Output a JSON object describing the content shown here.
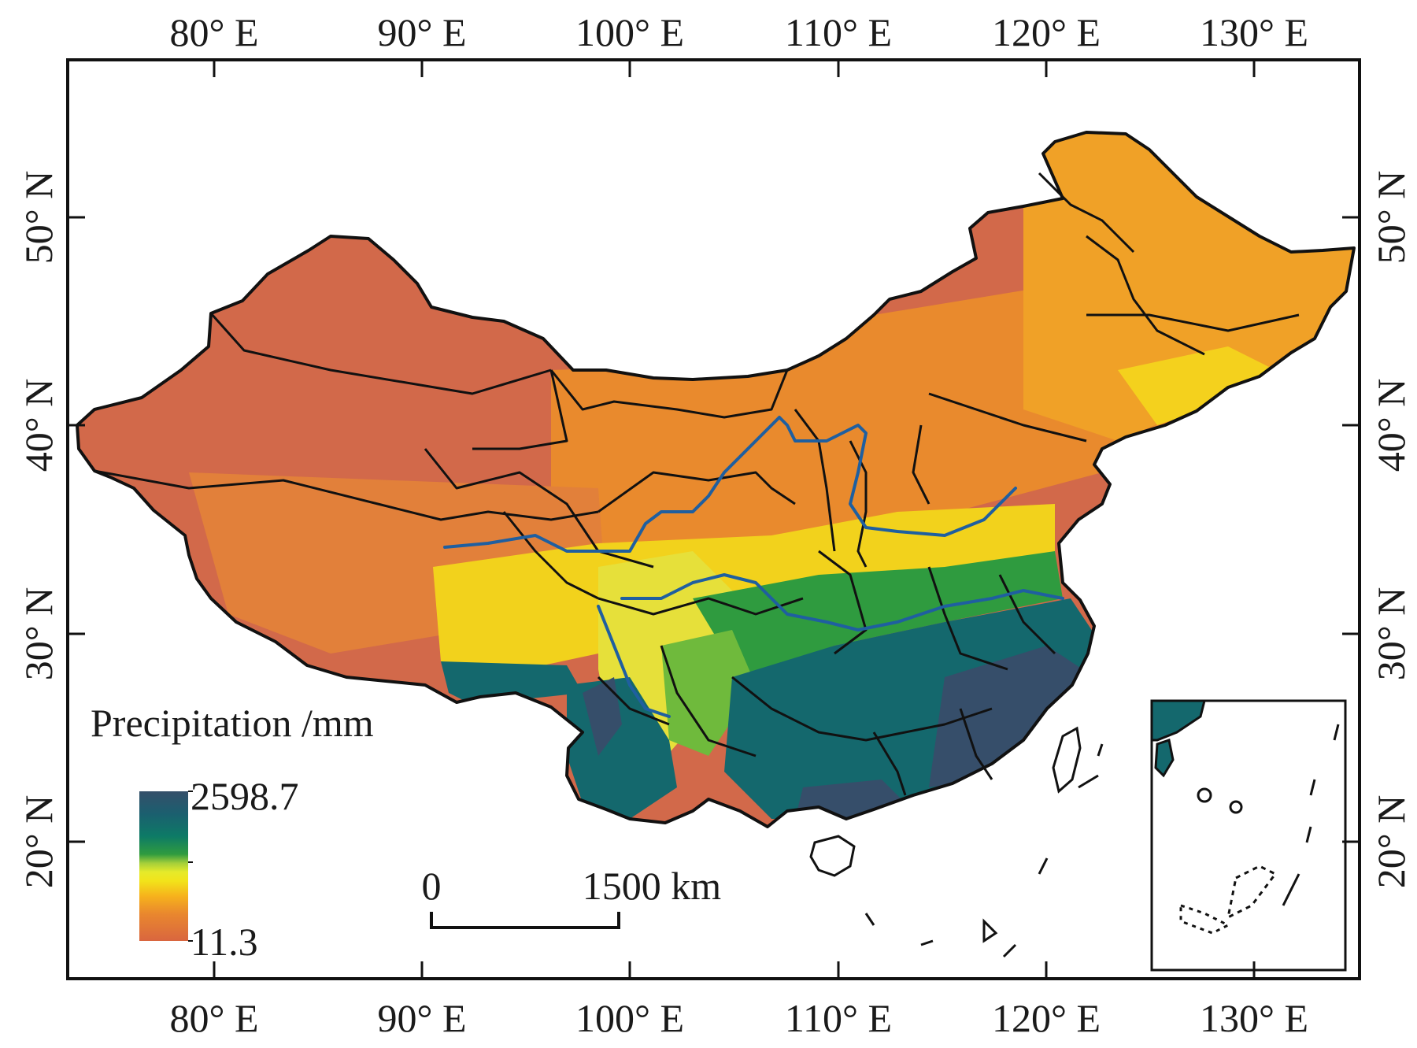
{
  "map": {
    "legend": {
      "title": "Precipitation /mm",
      "max_label": "2598.7",
      "min_label": "11.3",
      "colors": [
        "#d9663f",
        "#e9872e",
        "#f6b21c",
        "#f2e31a",
        "#e6ea2a",
        "#a4cf3a",
        "#2f9b3f",
        "#0d7a66",
        "#1b5f6f",
        "#354f6a"
      ]
    },
    "scale_bar": {
      "start_label": "0",
      "end_label": "1500 km"
    },
    "lon_ticks": [
      "80° E",
      "90° E",
      "100° E",
      "110° E",
      "120° E",
      "130° E"
    ],
    "lat_ticks": [
      "50° N",
      "40° N",
      "30° N",
      "20° N"
    ],
    "colors": {
      "arid_west": "#d2694a",
      "semi_arid": "#e98a2d",
      "northeast": "#f0a127",
      "transition": "#f4d11d",
      "humid": "#2c8f45",
      "very_humid": "#14686d",
      "wettest": "#364e6a",
      "rivers": "#1f5fa0",
      "borders": "#111111"
    }
  }
}
